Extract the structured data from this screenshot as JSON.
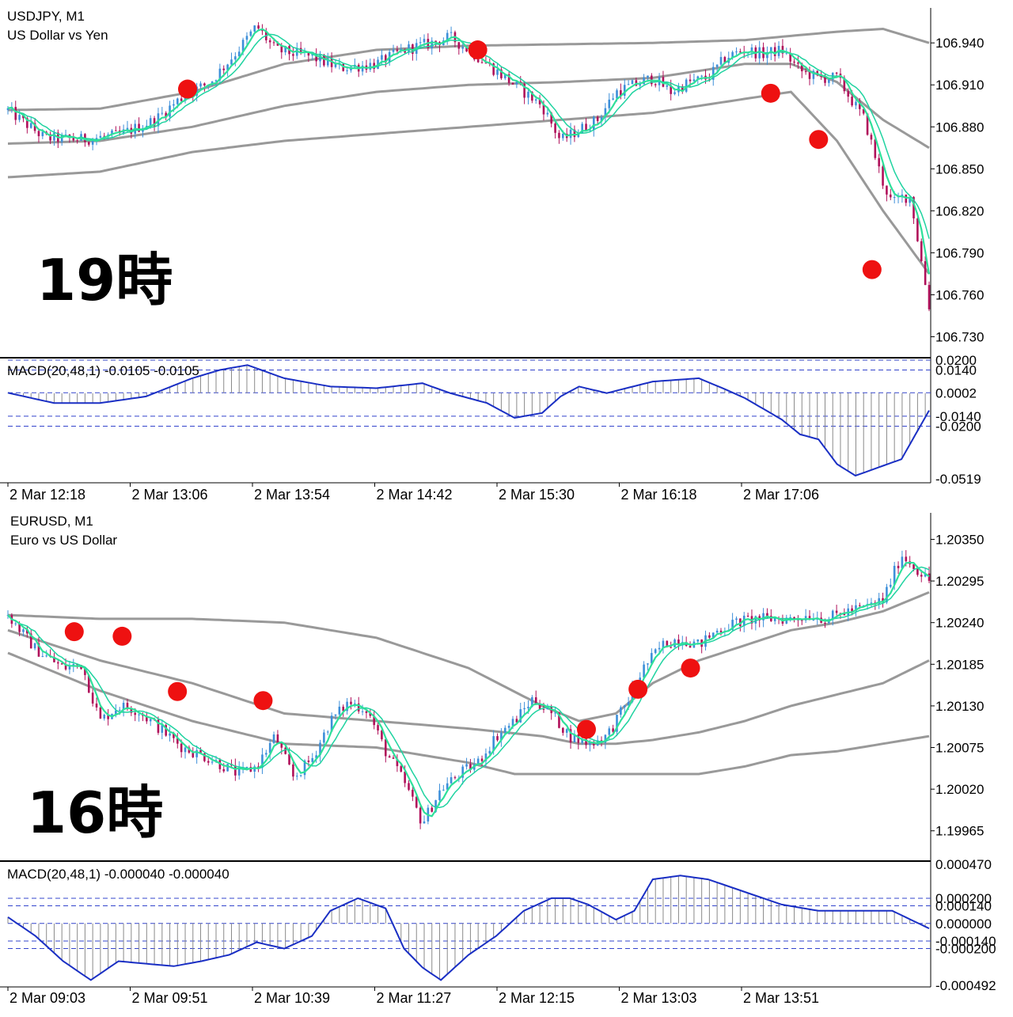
{
  "panel_top": {
    "symbol_line": "USDJPY, M1",
    "description": "US Dollar vs Yen",
    "hour_label": "19時",
    "macd_label": "MACD(20,48,1) -0.0105 -0.0105",
    "price_ticks": [
      "106.940",
      "106.910",
      "106.880",
      "106.850",
      "106.820",
      "106.790",
      "106.760",
      "106.730"
    ],
    "macd_ticks": [
      "0.0200",
      "0.0140",
      "0.0002",
      "-0.0140",
      "-0.0200",
      "-0.0519"
    ],
    "time_ticks": [
      "2 Mar 12:18",
      "2 Mar 13:06",
      "2 Mar 13:54",
      "2 Mar 14:42",
      "2 Mar 15:30",
      "2 Mar 16:18",
      "2 Mar 17:06"
    ]
  },
  "panel_bottom": {
    "symbol_line": "EURUSD, M1",
    "description": "Euro vs US Dollar",
    "hour_label": "16時",
    "macd_label": "MACD(20,48,1) -0.000040 -0.000040",
    "price_ticks": [
      "1.20350",
      "1.20295",
      "1.20240",
      "1.20185",
      "1.20130",
      "1.20075",
      "1.20020",
      "1.19965"
    ],
    "macd_ticks": [
      "0.000470",
      "0.000200",
      "0.000140",
      "0.000000",
      "-0.000140",
      "-0.000200",
      "-0.000492"
    ],
    "time_ticks": [
      "2 Mar 09:03",
      "2 Mar 09:51",
      "2 Mar 10:39",
      "2 Mar 11:27",
      "2 Mar 12:15",
      "2 Mar 13:03",
      "2 Mar 13:51"
    ]
  },
  "colors": {
    "bull": "#3d8fd9",
    "bear": "#b0105a",
    "ma_fast": "#1fd3a0",
    "ma_slow": "#2ee09a",
    "band": "#999999",
    "macd_line": "#1a2fc4",
    "macd_hist": "#8a8a8a",
    "level_line": "#3344cc",
    "marker": "#ee1111"
  },
  "chart_data": [
    {
      "type": "candlestick",
      "title": "USDJPY, M1",
      "ylim": [
        106.715,
        106.965
      ],
      "y_ticks": [
        106.94,
        106.91,
        106.88,
        106.85,
        106.82,
        106.79,
        106.76,
        106.73
      ],
      "x_ticks": [
        "2 Mar 12:18",
        "2 Mar 13:06",
        "2 Mar 13:54",
        "2 Mar 14:42",
        "2 Mar 15:30",
        "2 Mar 16:18",
        "2 Mar 17:06"
      ],
      "close_path": [
        [
          0,
          106.892
        ],
        [
          0.04,
          106.872
        ],
        [
          0.08,
          106.871
        ],
        [
          0.12,
          106.874
        ],
        [
          0.16,
          106.885
        ],
        [
          0.19,
          106.902
        ],
        [
          0.22,
          106.912
        ],
        [
          0.25,
          106.935
        ],
        [
          0.27,
          106.952
        ],
        [
          0.29,
          106.935
        ],
        [
          0.33,
          106.93
        ],
        [
          0.36,
          106.922
        ],
        [
          0.4,
          106.925
        ],
        [
          0.43,
          106.935
        ],
        [
          0.46,
          106.94
        ],
        [
          0.48,
          106.944
        ],
        [
          0.5,
          106.935
        ],
        [
          0.52,
          106.925
        ],
        [
          0.54,
          106.915
        ],
        [
          0.56,
          106.905
        ],
        [
          0.58,
          106.895
        ],
        [
          0.6,
          106.87
        ],
        [
          0.62,
          106.878
        ],
        [
          0.64,
          106.885
        ],
        [
          0.66,
          106.905
        ],
        [
          0.68,
          106.91
        ],
        [
          0.7,
          106.915
        ],
        [
          0.72,
          106.905
        ],
        [
          0.74,
          106.912
        ],
        [
          0.76,
          106.915
        ],
        [
          0.78,
          106.93
        ],
        [
          0.8,
          106.935
        ],
        [
          0.82,
          106.932
        ],
        [
          0.84,
          106.935
        ],
        [
          0.86,
          106.92
        ],
        [
          0.88,
          106.915
        ],
        [
          0.9,
          106.915
        ],
        [
          0.92,
          106.895
        ],
        [
          0.93,
          106.885
        ],
        [
          0.94,
          106.862
        ],
        [
          0.95,
          106.84
        ],
        [
          0.96,
          106.825
        ],
        [
          0.97,
          106.83
        ],
        [
          0.98,
          106.83
        ],
        [
          0.99,
          106.79
        ],
        [
          1.0,
          106.752
        ]
      ],
      "band_upper": [
        [
          0,
          106.892
        ],
        [
          0.1,
          106.893
        ],
        [
          0.2,
          106.905
        ],
        [
          0.3,
          106.925
        ],
        [
          0.4,
          106.935
        ],
        [
          0.5,
          106.938
        ],
        [
          0.6,
          106.939
        ],
        [
          0.7,
          106.94
        ],
        [
          0.8,
          106.942
        ],
        [
          0.85,
          106.945
        ],
        [
          0.9,
          106.948
        ],
        [
          0.95,
          106.95
        ],
        [
          1.0,
          106.94
        ]
      ],
      "band_mid": [
        [
          0,
          106.868
        ],
        [
          0.1,
          106.87
        ],
        [
          0.2,
          106.88
        ],
        [
          0.3,
          106.895
        ],
        [
          0.4,
          106.905
        ],
        [
          0.5,
          106.91
        ],
        [
          0.6,
          106.912
        ],
        [
          0.7,
          106.915
        ],
        [
          0.8,
          106.925
        ],
        [
          0.85,
          106.925
        ],
        [
          0.9,
          106.912
        ],
        [
          0.95,
          106.885
        ],
        [
          1.0,
          106.865
        ]
      ],
      "band_lower": [
        [
          0,
          106.844
        ],
        [
          0.1,
          106.848
        ],
        [
          0.2,
          106.862
        ],
        [
          0.3,
          106.87
        ],
        [
          0.4,
          106.875
        ],
        [
          0.5,
          106.88
        ],
        [
          0.6,
          106.885
        ],
        [
          0.7,
          106.89
        ],
        [
          0.8,
          106.9
        ],
        [
          0.85,
          106.905
        ],
        [
          0.9,
          106.87
        ],
        [
          0.95,
          106.82
        ],
        [
          1.0,
          106.775
        ]
      ],
      "markers": [
        {
          "x": 0.195,
          "y": 106.907
        },
        {
          "x": 0.51,
          "y": 106.935
        },
        {
          "x": 0.828,
          "y": 106.904
        },
        {
          "x": 0.88,
          "y": 106.871
        },
        {
          "x": 0.938,
          "y": 106.778
        }
      ],
      "macd": {
        "ylim": [
          -0.0519,
          0.02
        ],
        "levels": [
          0.02,
          0.014,
          0.0002,
          -0.014,
          -0.02
        ],
        "path": [
          [
            0,
            0.0002
          ],
          [
            0.05,
            -0.006
          ],
          [
            0.1,
            -0.006
          ],
          [
            0.15,
            -0.002
          ],
          [
            0.2,
            0.009
          ],
          [
            0.23,
            0.014
          ],
          [
            0.26,
            0.017
          ],
          [
            0.3,
            0.009
          ],
          [
            0.35,
            0.004
          ],
          [
            0.4,
            0.003
          ],
          [
            0.45,
            0.006
          ],
          [
            0.48,
            0.0
          ],
          [
            0.52,
            -0.006
          ],
          [
            0.55,
            -0.015
          ],
          [
            0.58,
            -0.012
          ],
          [
            0.6,
            -0.002
          ],
          [
            0.62,
            0.004
          ],
          [
            0.65,
            0.0
          ],
          [
            0.7,
            0.007
          ],
          [
            0.75,
            0.009
          ],
          [
            0.78,
            0.002
          ],
          [
            0.8,
            -0.003
          ],
          [
            0.84,
            -0.016
          ],
          [
            0.86,
            -0.025
          ],
          [
            0.88,
            -0.028
          ],
          [
            0.9,
            -0.043
          ],
          [
            0.92,
            -0.05
          ],
          [
            0.94,
            -0.046
          ],
          [
            0.97,
            -0.04
          ],
          [
            1.0,
            -0.0105
          ]
        ]
      }
    },
    {
      "type": "candlestick",
      "title": "EURUSD, M1",
      "ylim": [
        1.19925,
        1.20385
      ],
      "y_ticks": [
        1.2035,
        1.20295,
        1.2024,
        1.20185,
        1.2013,
        1.20075,
        1.2002,
        1.19965
      ],
      "x_ticks": [
        "2 Mar 09:03",
        "2 Mar 09:51",
        "2 Mar 10:39",
        "2 Mar 11:27",
        "2 Mar 12:15",
        "2 Mar 13:03",
        "2 Mar 13:51"
      ],
      "close_path": [
        [
          0,
          1.2025
        ],
        [
          0.03,
          1.20205
        ],
        [
          0.06,
          1.2018
        ],
        [
          0.08,
          1.20185
        ],
        [
          0.1,
          1.2011
        ],
        [
          0.12,
          1.2013
        ],
        [
          0.14,
          1.20125
        ],
        [
          0.16,
          1.20105
        ],
        [
          0.19,
          1.20075
        ],
        [
          0.22,
          1.2006
        ],
        [
          0.25,
          1.2004
        ],
        [
          0.27,
          1.2005
        ],
        [
          0.29,
          1.2009
        ],
        [
          0.31,
          1.20035
        ],
        [
          0.33,
          1.2006
        ],
        [
          0.35,
          1.2011
        ],
        [
          0.37,
          1.20135
        ],
        [
          0.39,
          1.20125
        ],
        [
          0.41,
          1.2007
        ],
        [
          0.43,
          1.2003
        ],
        [
          0.45,
          1.19975
        ],
        [
          0.47,
          1.2002
        ],
        [
          0.49,
          1.2004
        ],
        [
          0.51,
          1.20055
        ],
        [
          0.53,
          1.2009
        ],
        [
          0.55,
          1.2011
        ],
        [
          0.57,
          1.2014
        ],
        [
          0.59,
          1.2012
        ],
        [
          0.61,
          1.2009
        ],
        [
          0.63,
          1.2008
        ],
        [
          0.65,
          1.2009
        ],
        [
          0.67,
          1.2013
        ],
        [
          0.69,
          1.2018
        ],
        [
          0.71,
          1.2021
        ],
        [
          0.73,
          1.2022
        ],
        [
          0.75,
          1.2021
        ],
        [
          0.77,
          1.2023
        ],
        [
          0.79,
          1.2024
        ],
        [
          0.81,
          1.20245
        ],
        [
          0.83,
          1.20245
        ],
        [
          0.85,
          1.20245
        ],
        [
          0.87,
          1.2025
        ],
        [
          0.89,
          1.20245
        ],
        [
          0.91,
          1.20255
        ],
        [
          0.93,
          1.2026
        ],
        [
          0.95,
          1.2027
        ],
        [
          0.97,
          1.2033
        ],
        [
          1.0,
          1.20295
        ]
      ],
      "band_upper": [
        [
          0,
          1.2025
        ],
        [
          0.1,
          1.20245
        ],
        [
          0.2,
          1.20245
        ],
        [
          0.3,
          1.2024
        ],
        [
          0.4,
          1.2022
        ],
        [
          0.5,
          1.2018
        ],
        [
          0.58,
          1.2013
        ],
        [
          0.62,
          1.2011
        ],
        [
          0.66,
          1.2012
        ],
        [
          0.7,
          1.2016
        ],
        [
          0.75,
          1.2019
        ],
        [
          0.8,
          1.2021
        ],
        [
          0.85,
          1.2023
        ],
        [
          0.9,
          1.2024
        ],
        [
          0.95,
          1.20255
        ],
        [
          1.0,
          1.2028
        ]
      ],
      "band_mid": [
        [
          0,
          1.2023
        ],
        [
          0.1,
          1.2019
        ],
        [
          0.2,
          1.2016
        ],
        [
          0.3,
          1.2012
        ],
        [
          0.4,
          1.2011
        ],
        [
          0.5,
          1.201
        ],
        [
          0.58,
          1.2009
        ],
        [
          0.62,
          1.2008
        ],
        [
          0.66,
          1.2008
        ],
        [
          0.7,
          1.20085
        ],
        [
          0.75,
          1.20095
        ],
        [
          0.8,
          1.2011
        ],
        [
          0.85,
          1.2013
        ],
        [
          0.9,
          1.20145
        ],
        [
          0.95,
          1.2016
        ],
        [
          1.0,
          1.2019
        ]
      ],
      "band_lower": [
        [
          0,
          1.202
        ],
        [
          0.1,
          1.2015
        ],
        [
          0.2,
          1.2011
        ],
        [
          0.3,
          1.2008
        ],
        [
          0.4,
          1.20075
        ],
        [
          0.5,
          1.20055
        ],
        [
          0.55,
          1.2004
        ],
        [
          0.6,
          1.2004
        ],
        [
          0.66,
          1.2004
        ],
        [
          0.7,
          1.2004
        ],
        [
          0.75,
          1.2004
        ],
        [
          0.8,
          1.2005
        ],
        [
          0.85,
          1.20065
        ],
        [
          0.9,
          1.2007
        ],
        [
          0.95,
          1.2008
        ],
        [
          1.0,
          1.2009
        ]
      ],
      "markers": [
        {
          "x": 0.072,
          "y": 1.20228
        },
        {
          "x": 0.124,
          "y": 1.20222
        },
        {
          "x": 0.184,
          "y": 1.20149
        },
        {
          "x": 0.277,
          "y": 1.20137
        },
        {
          "x": 0.628,
          "y": 1.20099
        },
        {
          "x": 0.684,
          "y": 1.20152
        },
        {
          "x": 0.741,
          "y": 1.2018
        }
      ],
      "macd": {
        "ylim": [
          -0.000492,
          0.00047
        ],
        "levels": [
          0.0002,
          0.00014,
          0.0,
          -0.00014,
          -0.0002
        ],
        "path": [
          [
            0,
            5e-05
          ],
          [
            0.03,
            -0.0001
          ],
          [
            0.06,
            -0.0003
          ],
          [
            0.09,
            -0.00045
          ],
          [
            0.12,
            -0.0003
          ],
          [
            0.15,
            -0.00032
          ],
          [
            0.18,
            -0.00034
          ],
          [
            0.21,
            -0.0003
          ],
          [
            0.24,
            -0.00025
          ],
          [
            0.27,
            -0.00015
          ],
          [
            0.3,
            -0.0002
          ],
          [
            0.33,
            -0.0001
          ],
          [
            0.35,
            0.0001
          ],
          [
            0.38,
            0.0002
          ],
          [
            0.41,
            0.00012
          ],
          [
            0.43,
            -0.0002
          ],
          [
            0.45,
            -0.00035
          ],
          [
            0.47,
            -0.00045
          ],
          [
            0.5,
            -0.00025
          ],
          [
            0.53,
            -0.0001
          ],
          [
            0.56,
            0.0001
          ],
          [
            0.59,
            0.0002
          ],
          [
            0.61,
            0.0002
          ],
          [
            0.63,
            0.00015
          ],
          [
            0.66,
            3e-05
          ],
          [
            0.68,
            0.0001
          ],
          [
            0.7,
            0.00035
          ],
          [
            0.73,
            0.00038
          ],
          [
            0.76,
            0.00035
          ],
          [
            0.8,
            0.00025
          ],
          [
            0.84,
            0.00015
          ],
          [
            0.88,
            0.0001
          ],
          [
            0.92,
            0.0001
          ],
          [
            0.96,
            0.0001
          ],
          [
            1.0,
            -4e-05
          ]
        ]
      }
    }
  ]
}
